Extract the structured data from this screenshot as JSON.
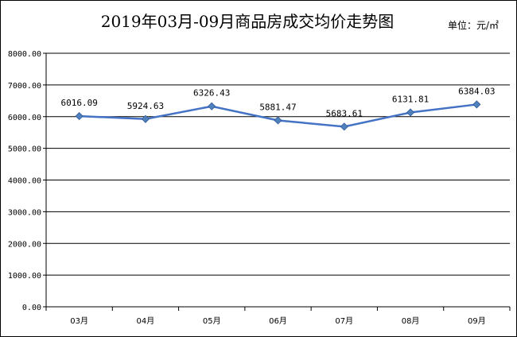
{
  "chart_data": {
    "type": "line",
    "title": "2019年03月-09月商品房成交均价走势图",
    "unit": "单位：元/㎡",
    "categories": [
      "03月",
      "04月",
      "05月",
      "06月",
      "07月",
      "08月",
      "09月"
    ],
    "values": [
      6016.09,
      5924.63,
      6326.43,
      5881.47,
      5683.61,
      6131.81,
      6384.03
    ],
    "value_labels": [
      "6016.09",
      "5924.63",
      "6326.43",
      "5881.47",
      "5683.61",
      "6131.81",
      "6384.03"
    ],
    "ylim": [
      0,
      8000
    ],
    "yticks": [
      0,
      1000,
      2000,
      3000,
      4000,
      5000,
      6000,
      7000,
      8000
    ],
    "ytick_labels": [
      "0.00",
      "1000.00",
      "2000.00",
      "3000.00",
      "4000.00",
      "5000.00",
      "6000.00",
      "7000.00",
      "8000.00"
    ],
    "grid": true,
    "legend": "none",
    "line_color": "#4472C4",
    "marker_color": "#4F81BD"
  }
}
